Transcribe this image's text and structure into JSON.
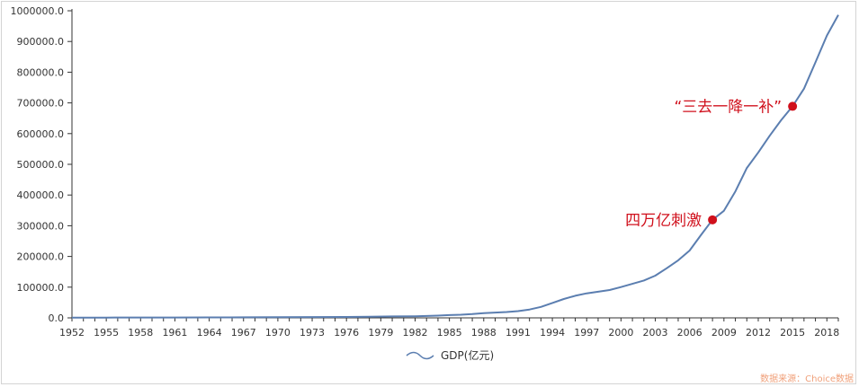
{
  "chart_data": {
    "type": "line",
    "title": "",
    "xlabel": "",
    "ylabel": "",
    "ylim": [
      0,
      1000000
    ],
    "xlim": [
      1952,
      2019
    ],
    "grid": false,
    "legend_position": "bottom",
    "y_tick_labels": [
      "0.0",
      "100000.0",
      "200000.0",
      "300000.0",
      "400000.0",
      "500000.0",
      "600000.0",
      "700000.0",
      "800000.0",
      "900000.0",
      "1000000.0"
    ],
    "x_tick_labels": [
      "1952",
      "1955",
      "1958",
      "1961",
      "1964",
      "1967",
      "1970",
      "1973",
      "1976",
      "1979",
      "1982",
      "1985",
      "1988",
      "1991",
      "1994",
      "1997",
      "2000",
      "2003",
      "2006",
      "2009",
      "2012",
      "2015",
      "2018"
    ],
    "series": [
      {
        "name": "GDP(亿元)",
        "color": "#5b7eb0",
        "x": [
          1952,
          1955,
          1958,
          1961,
          1964,
          1967,
          1970,
          1973,
          1976,
          1978,
          1980,
          1982,
          1984,
          1985,
          1986,
          1987,
          1988,
          1989,
          1990,
          1991,
          1992,
          1993,
          1994,
          1995,
          1996,
          1997,
          1998,
          1999,
          2000,
          2001,
          2002,
          2003,
          2004,
          2005,
          2006,
          2007,
          2008,
          2009,
          2010,
          2011,
          2012,
          2013,
          2014,
          2015,
          2016,
          2017,
          2018,
          2019
        ],
        "values": [
          679,
          911,
          1312,
          1220,
          1454,
          1773,
          2253,
          2721,
          2944,
          3679,
          4588,
          5373,
          7208,
          9099,
          10376,
          12175,
          15180,
          17180,
          18873,
          22006,
          27195,
          35673,
          48638,
          61340,
          71814,
          79715,
          85196,
          90564,
          100280,
          110863,
          121717,
          137422,
          161840,
          187319,
          219439,
          270092,
          319245,
          348518,
          412119,
          487940,
          538580,
          592963,
          643563,
          688858,
          746395,
          832036,
          919281,
          986515
        ]
      }
    ],
    "annotations": [
      {
        "label": "四万亿刺激",
        "x": 2008,
        "y": 319245,
        "color": "#d0101c"
      },
      {
        "label": "“三去一降一补”",
        "x": 2015,
        "y": 688858,
        "color": "#d0101c"
      }
    ],
    "source_note": "数据来源：Choice数据"
  }
}
